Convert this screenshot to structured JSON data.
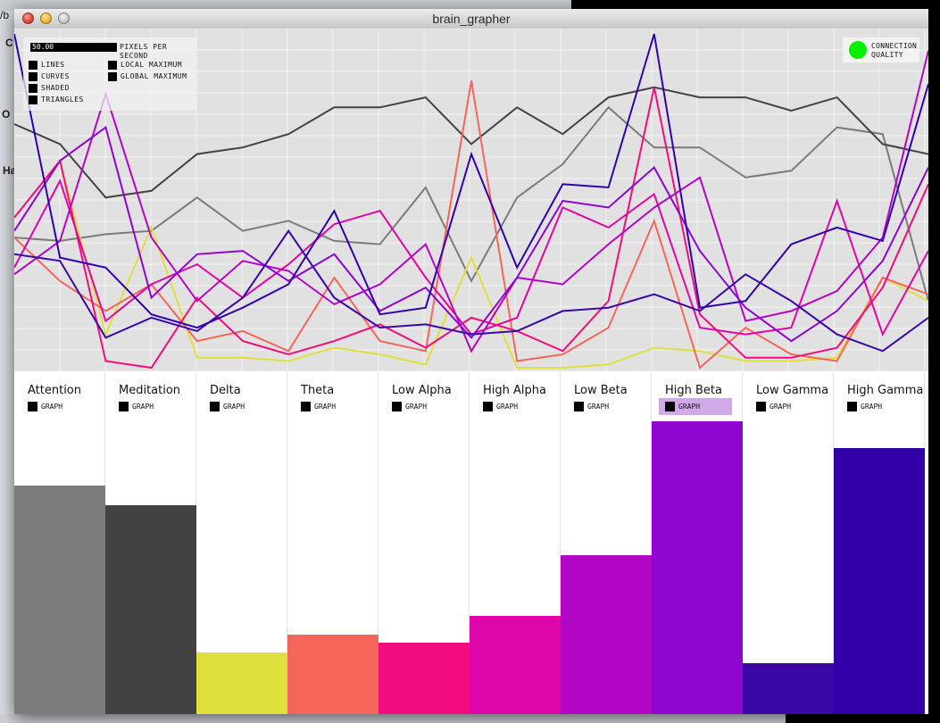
{
  "background": {
    "fragments": [
      "/b",
      "C",
      "O",
      "Ha"
    ]
  },
  "window": {
    "title": "brain_grapher"
  },
  "controls": {
    "pps_value": "50.00",
    "pps_label": "PIXELS PER SECOND",
    "options": [
      {
        "label": "LINES",
        "checked": true
      },
      {
        "label": "CURVES",
        "checked": true
      },
      {
        "label": "SHADED",
        "checked": true
      },
      {
        "label": "TRIANGLES",
        "checked": true
      },
      {
        "label": "LOCAL MAXIMUM",
        "checked": true
      },
      {
        "label": "GLOBAL MAXIMUM",
        "checked": true
      }
    ]
  },
  "connection": {
    "label": "CONNECTION QUALITY",
    "status_color": "#00f000"
  },
  "channels": [
    {
      "name": "Attention",
      "graph_label": "GRAPH",
      "graph_enabled": false,
      "color": "#7b7b7b",
      "level": 0.72
    },
    {
      "name": "Meditation",
      "graph_label": "GRAPH",
      "graph_enabled": false,
      "color": "#424242",
      "level": 0.66
    },
    {
      "name": "Delta",
      "graph_label": "GRAPH",
      "graph_enabled": false,
      "color": "#dfe03d",
      "level": 0.195
    },
    {
      "name": "Theta",
      "graph_label": "GRAPH",
      "graph_enabled": false,
      "color": "#f4665a",
      "level": 0.25
    },
    {
      "name": "Low Alpha",
      "graph_label": "GRAPH",
      "graph_enabled": false,
      "color": "#f10d7e",
      "level": 0.225
    },
    {
      "name": "High Alpha",
      "graph_label": "GRAPH",
      "graph_enabled": false,
      "color": "#de06a8",
      "level": 0.31
    },
    {
      "name": "Low Beta",
      "graph_label": "GRAPH",
      "graph_enabled": false,
      "color": "#b306c5",
      "level": 0.5
    },
    {
      "name": "High Beta",
      "graph_label": "GRAPH",
      "graph_enabled": true,
      "color": "#8e05d0",
      "level": 0.925
    },
    {
      "name": "Low Gamma",
      "graph_label": "GRAPH",
      "graph_enabled": false,
      "color": "#3a08a5",
      "level": 0.16
    },
    {
      "name": "High Gamma",
      "graph_label": "GRAPH",
      "graph_enabled": false,
      "color": "#3200a9",
      "level": 0.84
    }
  ],
  "chart_data": {
    "type": "line",
    "x": [
      0,
      1,
      2,
      3,
      4,
      5,
      6,
      7,
      8,
      9,
      10,
      11,
      12,
      13,
      14,
      15,
      16,
      17,
      18,
      19,
      20
    ],
    "grid": true,
    "legend": "none",
    "series": [
      {
        "color": "#7b7b7b",
        "values": [
          0.39,
          0.38,
          0.4,
          0.41,
          0.51,
          0.41,
          0.44,
          0.38,
          0.37,
          0.54,
          0.26,
          0.51,
          0.61,
          0.78,
          0.66,
          0.66,
          0.57,
          0.59,
          0.72,
          0.7,
          0.2
        ]
      },
      {
        "color": "#424242",
        "values": [
          0.73,
          0.67,
          0.51,
          0.53,
          0.64,
          0.66,
          0.7,
          0.78,
          0.78,
          0.81,
          0.67,
          0.78,
          0.7,
          0.81,
          0.84,
          0.81,
          0.81,
          0.77,
          0.81,
          0.67,
          0.64
        ]
      },
      {
        "color": "#dfe03d",
        "values": [
          0.45,
          0.62,
          0.1,
          0.42,
          0.03,
          0.03,
          0.02,
          0.06,
          0.04,
          0.01,
          0.33,
          0.0,
          0.0,
          0.01,
          0.06,
          0.05,
          0.02,
          0.02,
          0.03,
          0.27,
          0.2
        ]
      },
      {
        "color": "#f4665a",
        "values": [
          0.39,
          0.26,
          0.17,
          0.25,
          0.08,
          0.11,
          0.05,
          0.27,
          0.08,
          0.05,
          0.86,
          0.02,
          0.04,
          0.12,
          0.44,
          0.0,
          0.12,
          0.04,
          0.02,
          0.27,
          0.22
        ]
      },
      {
        "color": "#f10d7e",
        "values": [
          0.45,
          0.62,
          0.02,
          0.0,
          0.21,
          0.08,
          0.04,
          0.08,
          0.13,
          0.06,
          0.15,
          0.11,
          0.05,
          0.2,
          0.84,
          0.16,
          0.03,
          0.03,
          0.06,
          0.24,
          0.55
        ]
      },
      {
        "color": "#de06a8",
        "values": [
          0.3,
          0.56,
          0.14,
          0.25,
          0.31,
          0.21,
          0.31,
          0.43,
          0.47,
          0.27,
          0.1,
          0.15,
          0.48,
          0.42,
          0.52,
          0.12,
          0.1,
          0.12,
          0.5,
          0.1,
          0.35
        ]
      },
      {
        "color": "#b306c5",
        "values": [
          0.28,
          0.38,
          0.82,
          0.39,
          0.2,
          0.32,
          0.29,
          0.19,
          0.25,
          0.37,
          0.05,
          0.27,
          0.25,
          0.37,
          0.48,
          0.57,
          0.14,
          0.17,
          0.23,
          0.39,
          0.95
        ]
      },
      {
        "color": "#8e05d0",
        "values": [
          0.41,
          0.62,
          0.72,
          0.21,
          0.34,
          0.35,
          0.26,
          0.34,
          0.17,
          0.24,
          0.09,
          0.27,
          0.5,
          0.48,
          0.6,
          0.35,
          0.18,
          0.08,
          0.17,
          0.32,
          0.6
        ]
      },
      {
        "color": "#3a08a5",
        "values": [
          0.34,
          0.32,
          0.09,
          0.15,
          0.11,
          0.21,
          0.41,
          0.21,
          0.12,
          0.13,
          0.1,
          0.11,
          0.17,
          0.18,
          0.22,
          0.17,
          0.28,
          0.2,
          0.1,
          0.05,
          0.15
        ]
      },
      {
        "color": "#3200a9",
        "values": [
          1.0,
          0.33,
          0.3,
          0.16,
          0.12,
          0.18,
          0.25,
          0.47,
          0.16,
          0.18,
          0.64,
          0.3,
          0.55,
          0.54,
          1.0,
          0.18,
          0.2,
          0.37,
          0.42,
          0.38,
          0.85
        ]
      }
    ]
  }
}
